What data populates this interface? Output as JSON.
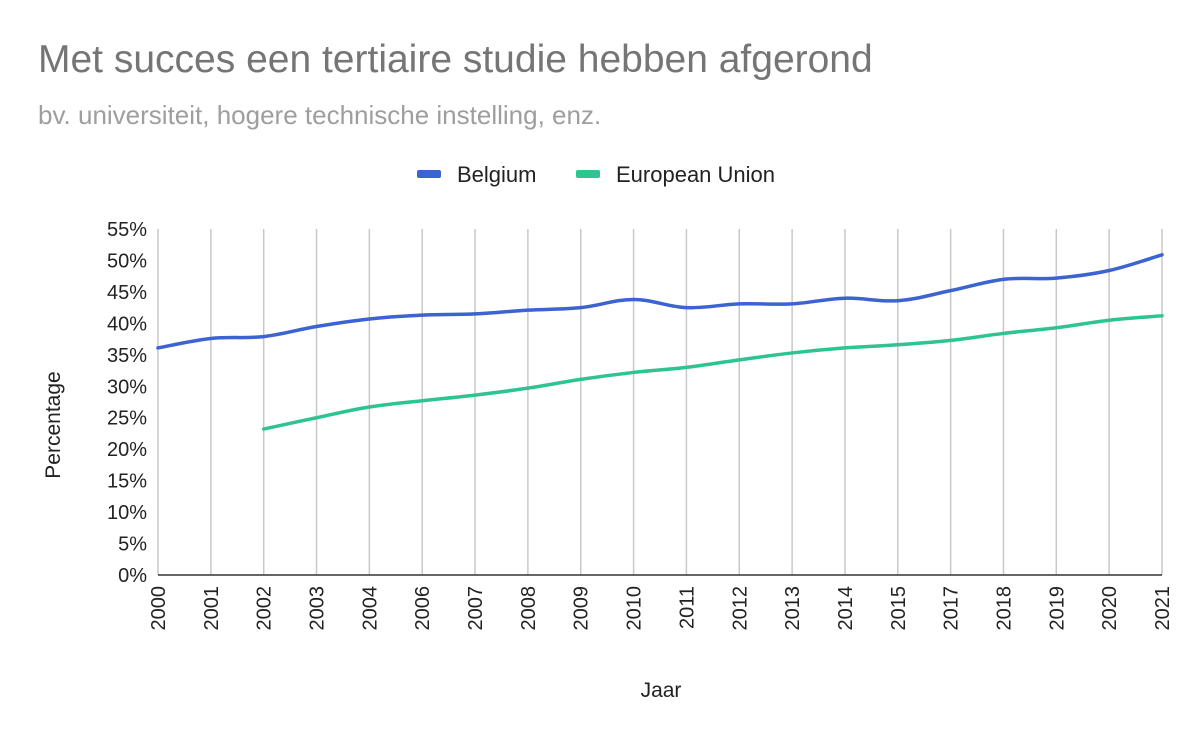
{
  "chart_data": {
    "type": "line",
    "title": "Met succes een tertiaire studie hebben afgerond",
    "subtitle": "bv. universiteit, hogere technische instelling, enz.",
    "xlabel": "Jaar",
    "ylabel": "Percentage",
    "categories": [
      "2000",
      "2001",
      "2002",
      "2003",
      "2004",
      "2006",
      "2007",
      "2008",
      "2009",
      "2010",
      "2011",
      "2012",
      "2013",
      "2014",
      "2015",
      "2017",
      "2018",
      "2019",
      "2020",
      "2021"
    ],
    "ylim": [
      0,
      55
    ],
    "yticks": [
      "0%",
      "5%",
      "10%",
      "15%",
      "20%",
      "25%",
      "30%",
      "35%",
      "40%",
      "45%",
      "50%",
      "55%"
    ],
    "grid": "vertical",
    "legend_position": "top",
    "series": [
      {
        "name": "Belgium",
        "color": "#3b63d1",
        "values": [
          36.1,
          37.6,
          37.9,
          39.5,
          40.7,
          41.3,
          41.5,
          42.1,
          42.5,
          43.8,
          42.5,
          43.1,
          43.1,
          44.0,
          43.6,
          45.2,
          47.0,
          47.2,
          48.4,
          50.9
        ]
      },
      {
        "name": "European Union",
        "color": "#2ec48f",
        "values": [
          null,
          null,
          23.2,
          25.0,
          26.7,
          27.7,
          28.6,
          29.7,
          31.1,
          32.2,
          33.0,
          34.2,
          35.3,
          36.1,
          36.6,
          37.3,
          38.4,
          39.3,
          40.5,
          41.2
        ]
      }
    ]
  }
}
